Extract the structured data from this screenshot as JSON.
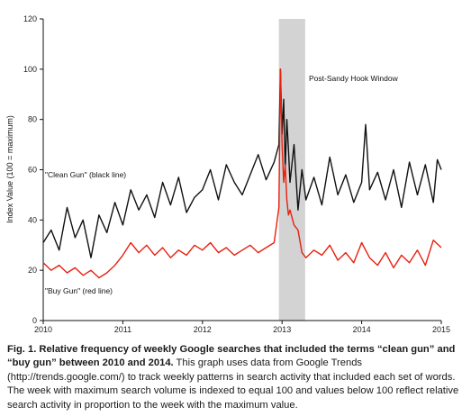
{
  "chart_data": {
    "type": "line",
    "ylabel": "Index Value (100 = maximum)",
    "xlabel": "",
    "ylim": [
      0,
      120
    ],
    "yticks": [
      0,
      20,
      40,
      60,
      80,
      100,
      120
    ],
    "xlim": [
      2010,
      2015
    ],
    "xticks": [
      2010,
      2011,
      2012,
      2013,
      2014,
      2015
    ],
    "grid": false,
    "highlight_band": {
      "x_start": 2012.96,
      "x_end": 2013.29,
      "label": "Post-Sandy Hook Window",
      "color": "#d3d3d3"
    },
    "series": [
      {
        "name": "\"Clean Gun\" (black line)",
        "color": "#111111",
        "x": [
          2010.0,
          2010.1,
          2010.2,
          2010.3,
          2010.4,
          2010.5,
          2010.6,
          2010.7,
          2010.8,
          2010.9,
          2011.0,
          2011.1,
          2011.2,
          2011.3,
          2011.4,
          2011.5,
          2011.6,
          2011.7,
          2011.8,
          2011.9,
          2012.0,
          2012.1,
          2012.2,
          2012.3,
          2012.4,
          2012.5,
          2012.6,
          2012.7,
          2012.8,
          2012.9,
          2012.96,
          2012.98,
          2013.0,
          2013.02,
          2013.04,
          2013.06,
          2013.08,
          2013.1,
          2013.15,
          2013.2,
          2013.25,
          2013.3,
          2013.4,
          2013.5,
          2013.6,
          2013.7,
          2013.8,
          2013.9,
          2014.0,
          2014.05,
          2014.1,
          2014.2,
          2014.3,
          2014.4,
          2014.5,
          2014.6,
          2014.7,
          2014.8,
          2014.9,
          2014.95,
          2015.0
        ],
        "values": [
          31,
          36,
          28,
          45,
          33,
          40,
          25,
          42,
          35,
          47,
          38,
          52,
          44,
          50,
          41,
          55,
          46,
          57,
          43,
          49,
          52,
          60,
          48,
          62,
          55,
          50,
          58,
          66,
          56,
          63,
          70,
          100,
          74,
          88,
          60,
          80,
          68,
          55,
          70,
          44,
          60,
          48,
          57,
          46,
          65,
          50,
          58,
          47,
          55,
          78,
          52,
          59,
          48,
          60,
          45,
          63,
          50,
          62,
          47,
          64,
          60
        ]
      },
      {
        "name": "\"Buy Gun\" (red line)",
        "color": "#e8200f",
        "x": [
          2010.0,
          2010.1,
          2010.2,
          2010.3,
          2010.4,
          2010.5,
          2010.6,
          2010.7,
          2010.8,
          2010.9,
          2011.0,
          2011.1,
          2011.2,
          2011.3,
          2011.4,
          2011.5,
          2011.6,
          2011.7,
          2011.8,
          2011.9,
          2012.0,
          2012.1,
          2012.2,
          2012.3,
          2012.4,
          2012.5,
          2012.6,
          2012.7,
          2012.8,
          2012.9,
          2012.96,
          2012.98,
          2013.0,
          2013.02,
          2013.04,
          2013.06,
          2013.08,
          2013.1,
          2013.15,
          2013.2,
          2013.25,
          2013.3,
          2013.4,
          2013.5,
          2013.6,
          2013.7,
          2013.8,
          2013.9,
          2014.0,
          2014.1,
          2014.2,
          2014.3,
          2014.4,
          2014.5,
          2014.6,
          2014.7,
          2014.8,
          2014.9,
          2015.0
        ],
        "values": [
          23,
          20,
          22,
          19,
          21,
          18,
          20,
          17,
          19,
          22,
          26,
          31,
          27,
          30,
          26,
          29,
          25,
          28,
          26,
          30,
          28,
          31,
          27,
          29,
          26,
          28,
          30,
          27,
          29,
          31,
          45,
          100,
          70,
          55,
          62,
          48,
          42,
          44,
          38,
          36,
          27,
          25,
          28,
          26,
          30,
          24,
          27,
          23,
          31,
          25,
          22,
          27,
          21,
          26,
          23,
          28,
          22,
          32,
          29
        ]
      }
    ],
    "annotations": [
      "Post-Sandy Hook Window",
      "\"Clean Gun\" (black line)",
      "\"Buy Gun\" (red line)"
    ]
  },
  "caption": {
    "bold": "Fig. 1. Relative frequency of weekly Google searches that included the terms “clean gun” and “buy gun” between 2010 and 2014.",
    "text": " This graph uses data from Google Trends (http://trends.google.com/) to track weekly patterns in search activity that included each set of words. The week with maximum search volume is indexed to equal 100 and values below 100 reflect relative search activity in proportion to the week with the maximum value."
  }
}
